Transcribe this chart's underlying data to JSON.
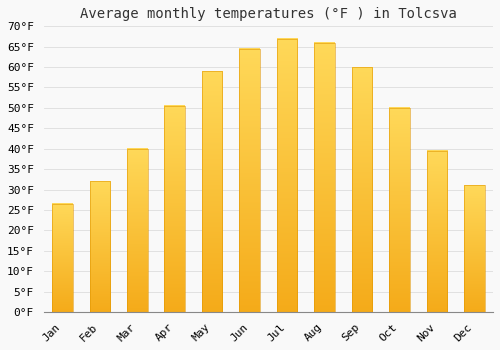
{
  "title": "Average monthly temperatures (°F ) in Tolcsva",
  "months": [
    "Jan",
    "Feb",
    "Mar",
    "Apr",
    "May",
    "Jun",
    "Jul",
    "Aug",
    "Sep",
    "Oct",
    "Nov",
    "Dec"
  ],
  "values": [
    26.5,
    32.0,
    40.0,
    50.5,
    59.0,
    64.5,
    67.0,
    66.0,
    60.0,
    50.0,
    39.5,
    31.0
  ],
  "bar_color_top": "#F5A800",
  "bar_color_bottom": "#FFCC44",
  "bar_edge_color": "#E09600",
  "ylim": [
    0,
    70
  ],
  "ytick_step": 5,
  "background_color": "#f9f9f9",
  "grid_color": "#dddddd",
  "title_fontsize": 10,
  "tick_fontsize": 8,
  "font_family": "monospace",
  "bar_width": 0.55
}
